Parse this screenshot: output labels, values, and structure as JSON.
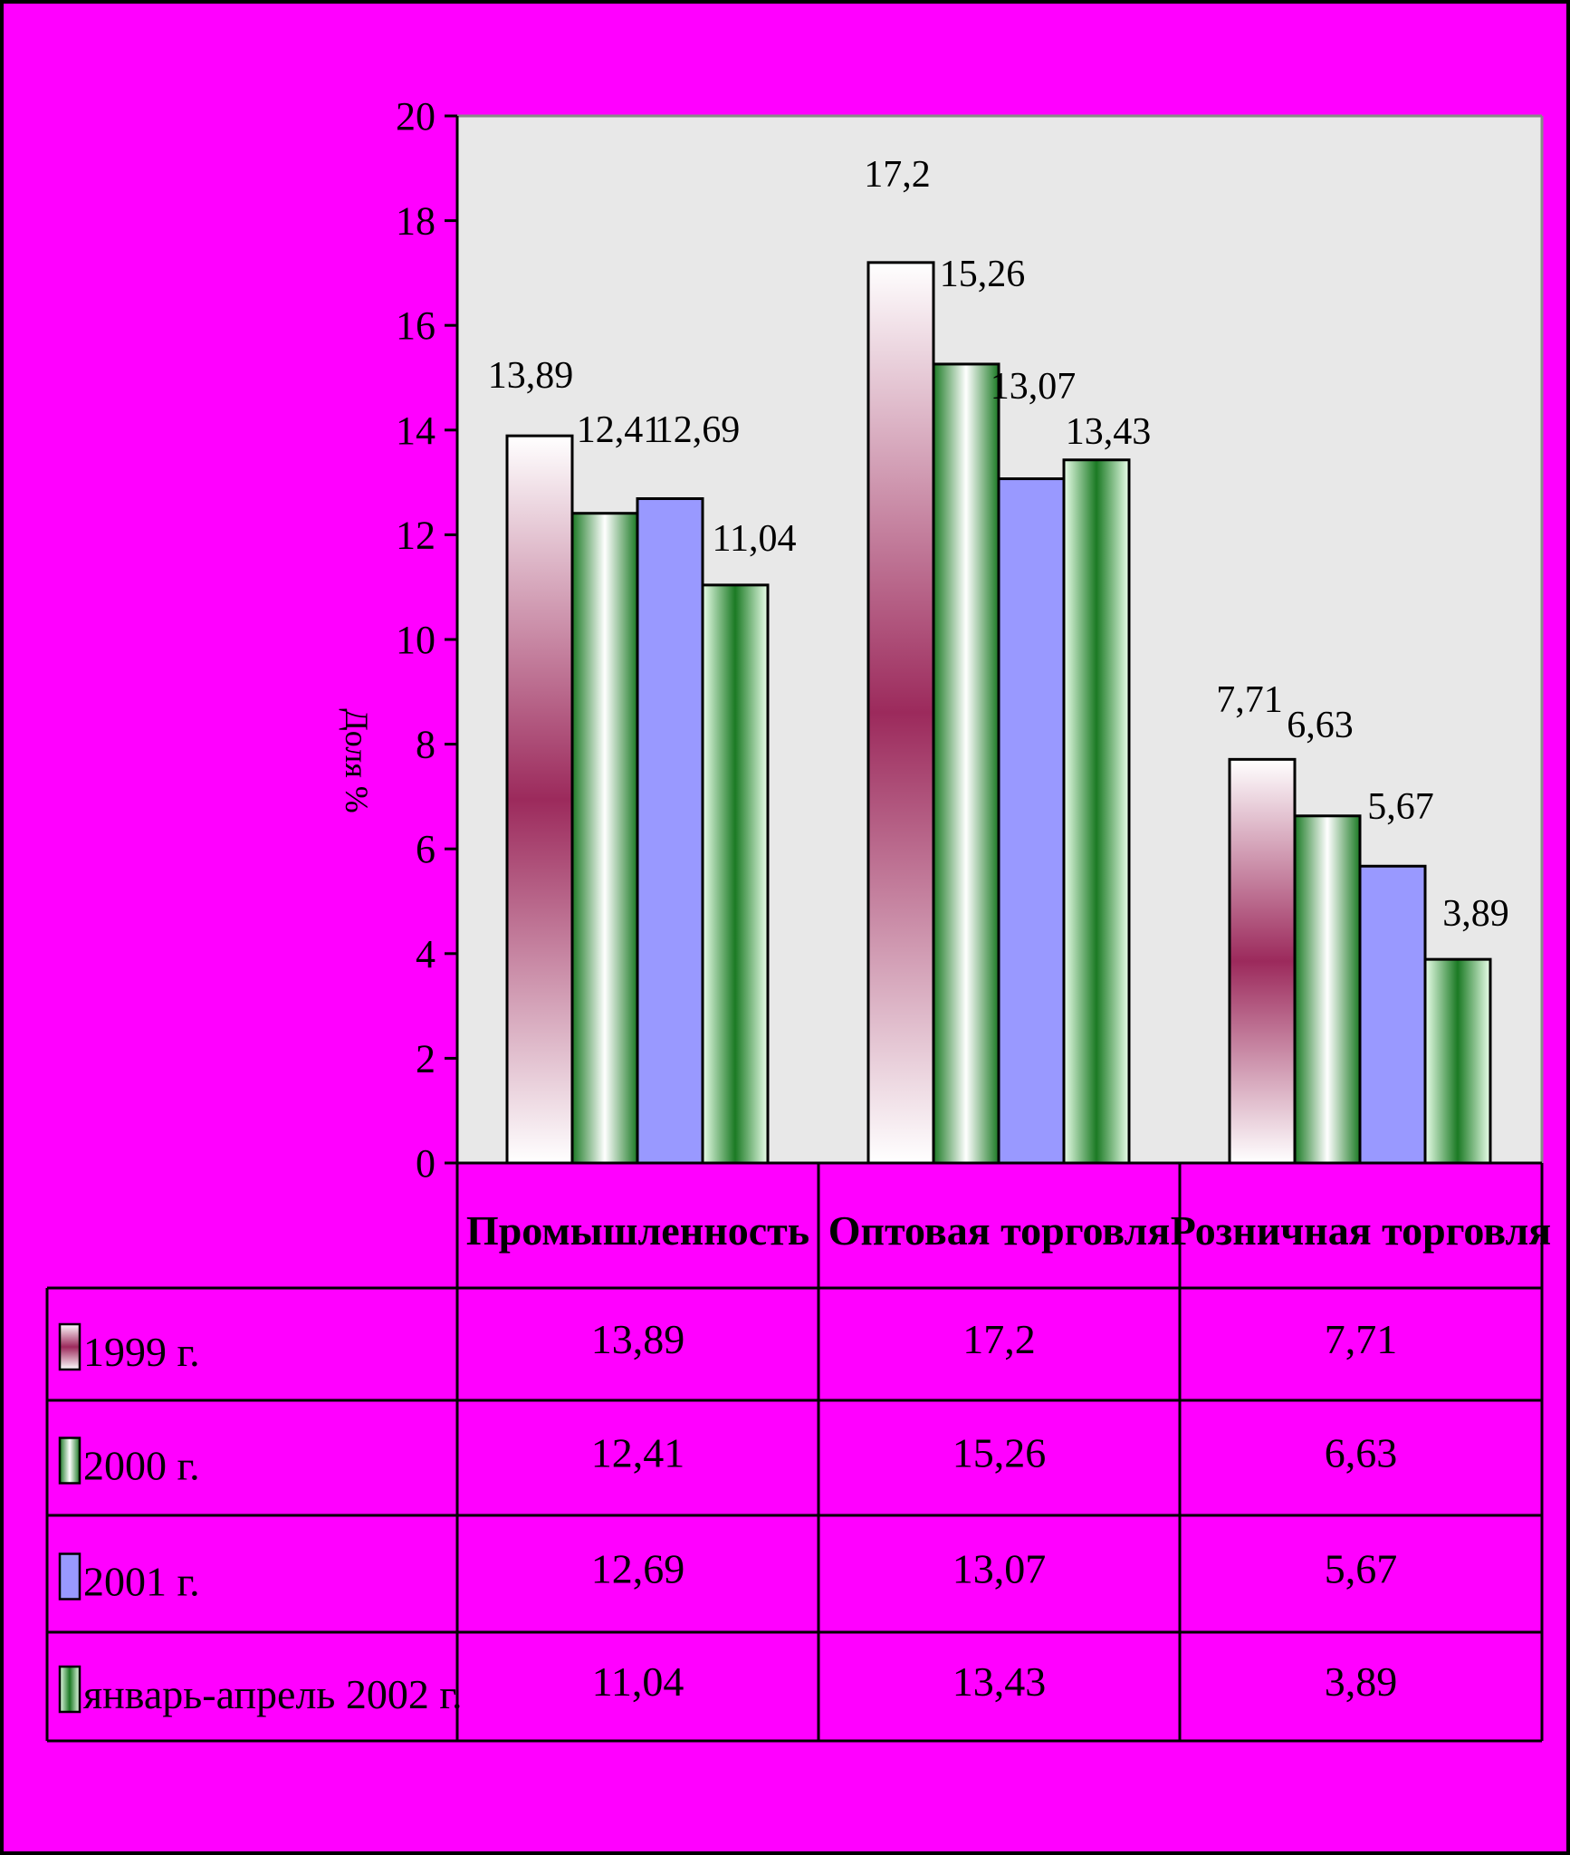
{
  "chart_data": {
    "type": "bar",
    "ylabel": "Доля  %",
    "ylim": [
      0,
      20
    ],
    "yticks": [
      0,
      2,
      4,
      6,
      8,
      10,
      12,
      14,
      16,
      18,
      20
    ],
    "categories": [
      "Промышленность",
      "Оптовая торговля",
      "Розничная торговля"
    ],
    "series": [
      {
        "name": "1999 г.",
        "values": [
          13.89,
          17.2,
          7.71
        ],
        "labels": [
          "13,89",
          "17,2",
          "7,71"
        ]
      },
      {
        "name": "2000 г.",
        "values": [
          12.41,
          15.26,
          6.63
        ],
        "labels": [
          "12,41",
          "15,26",
          "6,63"
        ]
      },
      {
        "name": "2001 г.",
        "values": [
          12.69,
          13.07,
          5.67
        ],
        "labels": [
          "12,69",
          "13,07",
          "5,67"
        ]
      },
      {
        "name": "январь-апрель 2002 г.",
        "values": [
          11.04,
          13.43,
          3.89
        ],
        "labels": [
          "11,04",
          "13,43",
          "3,89"
        ]
      }
    ],
    "data_table": true,
    "grid": false,
    "legend": "in-table"
  },
  "colors": {
    "background": "#ff00ff",
    "plot_area": "#e8e8e8",
    "series_1999": [
      "#ffffff",
      "#9c2a5c"
    ],
    "series_2000": [
      "#ffffff",
      "#1b7a24"
    ],
    "series_2001": "#9999ff",
    "series_2002": [
      "#e8ffe8",
      "#1b7a24"
    ]
  }
}
